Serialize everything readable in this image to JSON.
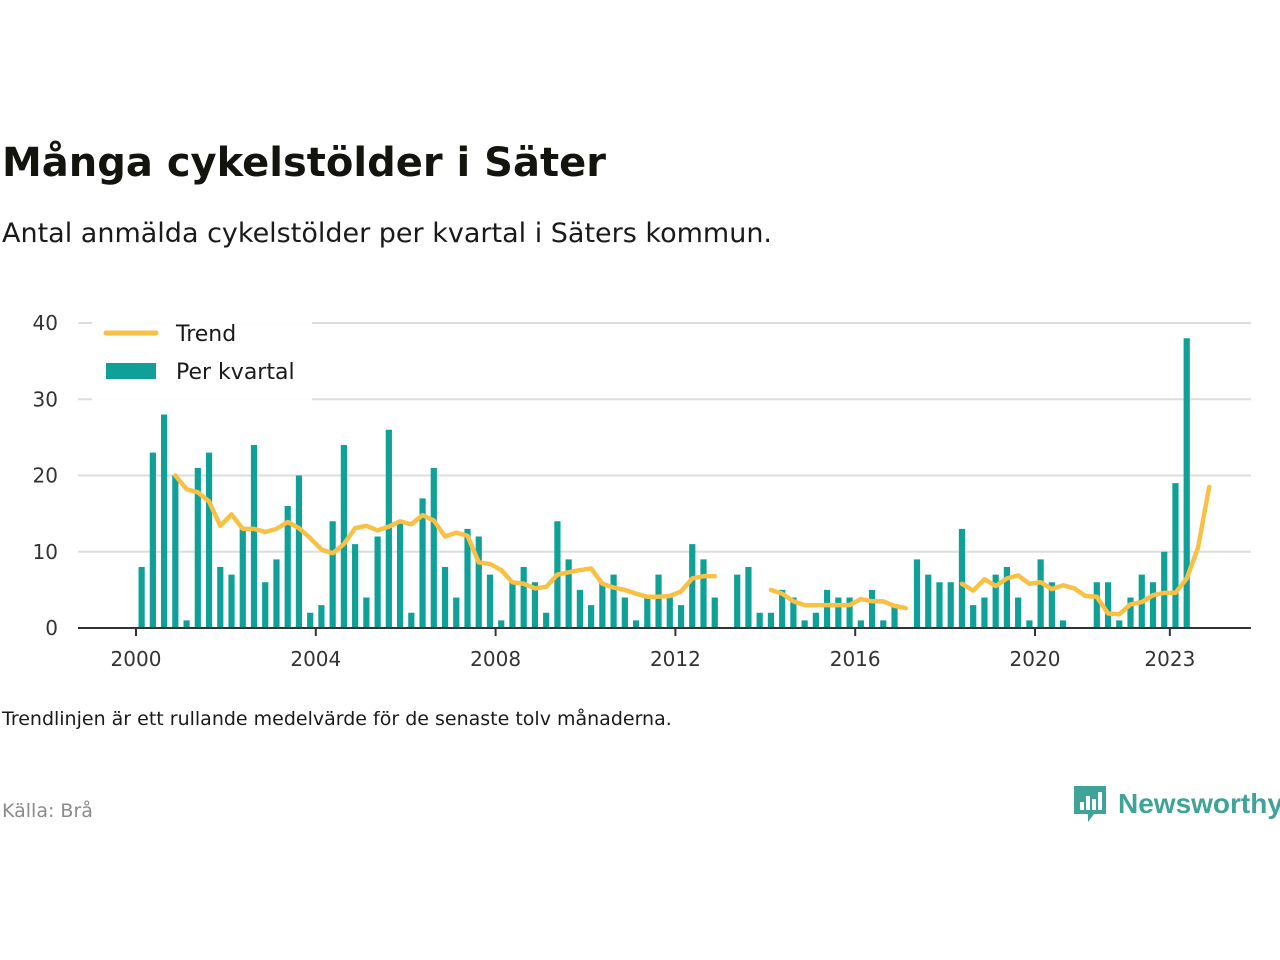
{
  "title": "Många cykelstölder i Säter",
  "subtitle": "Antal anmälda cykelstölder per kvartal i Säters kommun.",
  "note": "Trendlinjen är ett rullande medelvärde för de senaste tolv månaderna.",
  "source": "Källa: Brå",
  "brand": "Newsworthy",
  "colors": {
    "bar": "#0fa198",
    "trend": "#f8c146",
    "grid": "#dddddd",
    "axis": "#333333",
    "brand": "#3fa398"
  },
  "chart_data": {
    "type": "bar",
    "title": "Många cykelstölder i Säter",
    "ylim": [
      0,
      40
    ],
    "yticks": [
      0,
      10,
      20,
      30,
      40
    ],
    "xticks": [
      {
        "label": "2000",
        "year": 2000
      },
      {
        "label": "2004",
        "year": 2004
      },
      {
        "label": "2008",
        "year": 2008
      },
      {
        "label": "2012",
        "year": 2012
      },
      {
        "label": "2016",
        "year": 2016
      },
      {
        "label": "2020",
        "year": 2020
      },
      {
        "label": "2023",
        "year": 2023
      }
    ],
    "grid": true,
    "legend_position": "top-left",
    "legend": [
      {
        "label": "Trend",
        "kind": "line"
      },
      {
        "label": "Per kvartal",
        "kind": "bar"
      }
    ],
    "series": [
      {
        "name": "Per kvartal",
        "type": "bar",
        "start": "2000Q1",
        "values": [
          8,
          23,
          28,
          20,
          1,
          21,
          23,
          8,
          7,
          13,
          24,
          6,
          9,
          16,
          20,
          2,
          3,
          14,
          24,
          11,
          4,
          12,
          26,
          14,
          2,
          17,
          21,
          8,
          4,
          13,
          12,
          7,
          1,
          6,
          8,
          6,
          2,
          14,
          9,
          5,
          3,
          6,
          7,
          4,
          1,
          4,
          7,
          4,
          3,
          11,
          9,
          4,
          0,
          7,
          8,
          2,
          2,
          5,
          4,
          1,
          2,
          5,
          4,
          4,
          1,
          5,
          1,
          3,
          0,
          9,
          7,
          6,
          6,
          13,
          3,
          4,
          7,
          8,
          4,
          1,
          9,
          6,
          1,
          0,
          0,
          6,
          6,
          1,
          4,
          7,
          6,
          10,
          19,
          38
        ]
      },
      {
        "name": "Trend",
        "type": "line",
        "start": "2000Q4",
        "values": [
          20,
          18.2,
          17.8,
          16.6,
          13.4,
          14.9,
          13,
          13,
          12.6,
          13,
          13.9,
          13.1,
          11.8,
          10.3,
          9.8,
          11,
          13.1,
          13.4,
          12.8,
          13.3,
          14,
          13.6,
          14.8,
          14.1,
          12,
          12.5,
          12.1,
          8.6,
          8.4,
          7.6,
          6,
          5.8,
          5.2,
          5.4,
          7,
          7.3,
          7.6,
          7.8,
          5.8,
          5.3,
          5,
          4.5,
          4.1,
          4.1,
          4.2,
          4.8,
          6.5,
          6.8,
          6.8,
          null,
          null,
          null,
          null,
          5,
          4.5,
          3.5,
          3,
          3,
          3,
          3,
          3,
          3.8,
          3.5,
          3.5,
          2.9,
          2.6,
          null,
          null,
          null,
          null,
          5.8,
          4.9,
          6.4,
          5.5,
          6.5,
          6.9,
          5.8,
          6,
          5.1,
          5.6,
          5.2,
          4.2,
          4.1,
          1.9,
          1.8,
          3.1,
          3.4,
          4.3,
          4.6,
          4.6,
          6.5,
          10.5,
          18.5
        ]
      }
    ]
  }
}
